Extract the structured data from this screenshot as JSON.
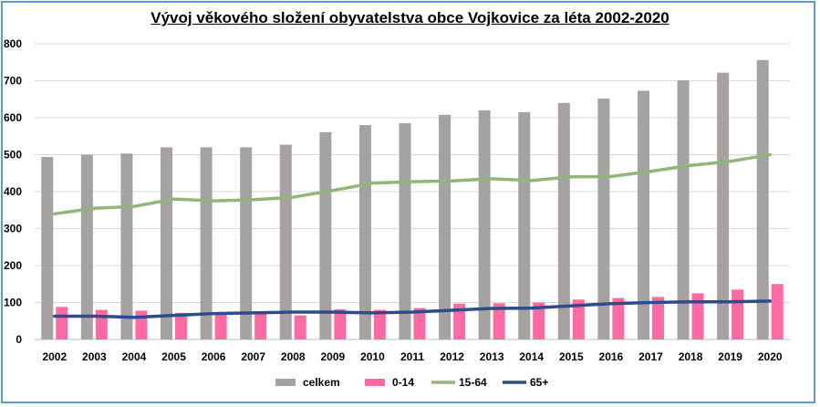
{
  "chart_data": {
    "type": "bar",
    "title": "Vývoj věkového složení obyvatelstva obce Vojkovice za léta 2002-2020",
    "xlabel": "",
    "ylabel": "",
    "ylim": [
      0,
      800
    ],
    "yticks": [
      0,
      100,
      200,
      300,
      400,
      500,
      600,
      700,
      800
    ],
    "grid": true,
    "legend_position": "bottom",
    "categories": [
      "2002",
      "2003",
      "2004",
      "2005",
      "2006",
      "2007",
      "2008",
      "2009",
      "2010",
      "2011",
      "2012",
      "2013",
      "2014",
      "2015",
      "2016",
      "2017",
      "2018",
      "2019",
      "2020"
    ],
    "series": [
      {
        "name": "celkem",
        "kind": "bar",
        "color": "#a6a2a2",
        "values": [
          494,
          500,
          503,
          520,
          520,
          520,
          527,
          561,
          580,
          585,
          608,
          620,
          615,
          640,
          652,
          673,
          701,
          722,
          756
        ]
      },
      {
        "name": "0-14",
        "kind": "bar",
        "color": "#ff69a4",
        "values": [
          88,
          80,
          78,
          72,
          70,
          70,
          65,
          82,
          80,
          85,
          97,
          98,
          100,
          108,
          112,
          115,
          125,
          135,
          150
        ]
      },
      {
        "name": "15-64",
        "kind": "line",
        "color": "#92b67a",
        "values": [
          340,
          355,
          360,
          380,
          375,
          378,
          385,
          403,
          423,
          427,
          429,
          435,
          430,
          440,
          441,
          455,
          471,
          482,
          500
        ]
      },
      {
        "name": "65+",
        "kind": "line",
        "color": "#2e4b8a",
        "values": [
          63,
          63,
          60,
          65,
          70,
          72,
          74,
          74,
          72,
          74,
          79,
          84,
          85,
          91,
          97,
          100,
          102,
          102,
          104
        ]
      }
    ]
  }
}
